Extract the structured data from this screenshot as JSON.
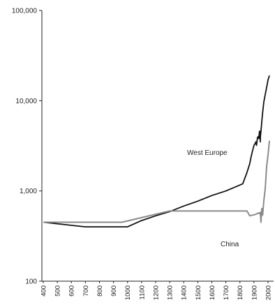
{
  "chart_data": {
    "type": "line",
    "title": "",
    "xlabel": "",
    "ylabel": "",
    "y_scale": "log",
    "ylim": [
      100,
      100000
    ],
    "xlim": [
      400,
      2020
    ],
    "grid": false,
    "legend": "none",
    "y_ticks": [
      {
        "value": 100,
        "label": "100"
      },
      {
        "value": 1000,
        "label": "1,000"
      },
      {
        "value": 10000,
        "label": "10,000"
      },
      {
        "value": 100000,
        "label": "100,000"
      }
    ],
    "x_ticks": [
      {
        "value": 400,
        "label": "400"
      },
      {
        "value": 500,
        "label": "500"
      },
      {
        "value": 600,
        "label": "600"
      },
      {
        "value": 700,
        "label": "700"
      },
      {
        "value": 800,
        "label": "800"
      },
      {
        "value": 900,
        "label": "900"
      },
      {
        "value": 1000,
        "label": "1000"
      },
      {
        "value": 1100,
        "label": "1100"
      },
      {
        "value": 1200,
        "label": "1200"
      },
      {
        "value": 1300,
        "label": "1300"
      },
      {
        "value": 1400,
        "label": "1400"
      },
      {
        "value": 1500,
        "label": "1500"
      },
      {
        "value": 1600,
        "label": "1600"
      },
      {
        "value": 1700,
        "label": "1700"
      },
      {
        "value": 1800,
        "label": "1800"
      },
      {
        "value": 1900,
        "label": "1900"
      },
      {
        "value": 2000,
        "label": "2000"
      }
    ],
    "series": [
      {
        "name": "West Europe",
        "color": "#111111",
        "points": [
          [
            400,
            450
          ],
          [
            700,
            400
          ],
          [
            1000,
            400
          ],
          [
            1100,
            470
          ],
          [
            1200,
            530
          ],
          [
            1300,
            590
          ],
          [
            1400,
            680
          ],
          [
            1500,
            770
          ],
          [
            1600,
            890
          ],
          [
            1700,
            1000
          ],
          [
            1820,
            1200
          ],
          [
            1850,
            1600
          ],
          [
            1870,
            2000
          ],
          [
            1880,
            2400
          ],
          [
            1890,
            2800
          ],
          [
            1900,
            3200
          ],
          [
            1910,
            3400
          ],
          [
            1913,
            3500
          ],
          [
            1918,
            3200
          ],
          [
            1925,
            3900
          ],
          [
            1930,
            4000
          ],
          [
            1935,
            3800
          ],
          [
            1938,
            4400
          ],
          [
            1940,
            4600
          ],
          [
            1944,
            4500
          ],
          [
            1945,
            3500
          ],
          [
            1946,
            4000
          ],
          [
            1950,
            4600
          ],
          [
            1960,
            6900
          ],
          [
            1970,
            9700
          ],
          [
            1980,
            11700
          ],
          [
            1990,
            14000
          ],
          [
            2000,
            17000
          ],
          [
            2010,
            19000
          ]
        ]
      },
      {
        "name": "China",
        "color": "#8a8a8a",
        "points": [
          [
            400,
            450
          ],
          [
            960,
            450
          ],
          [
            1300,
            600
          ],
          [
            1820,
            600
          ],
          [
            1850,
            600
          ],
          [
            1870,
            530
          ],
          [
            1890,
            540
          ],
          [
            1913,
            550
          ],
          [
            1930,
            570
          ],
          [
            1940,
            560
          ],
          [
            1945,
            580
          ],
          [
            1950,
            450
          ],
          [
            1956,
            640
          ],
          [
            1960,
            620
          ],
          [
            1962,
            540
          ],
          [
            1970,
            780
          ],
          [
            1980,
            1060
          ],
          [
            1990,
            1870
          ],
          [
            2000,
            2500
          ],
          [
            2010,
            3600
          ]
        ]
      }
    ]
  }
}
